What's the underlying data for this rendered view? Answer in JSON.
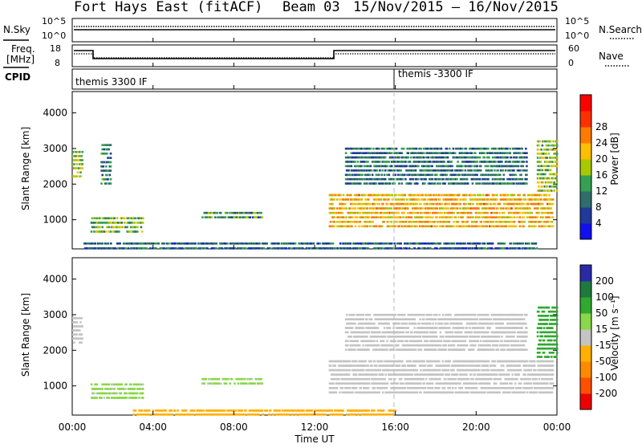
{
  "header": {
    "radar": "Fort Hays East (fitACF)",
    "beam": "Beam 03",
    "dates": "15/Nov/2015 – 16/Nov/2015"
  },
  "panels": {
    "nsky_label": "N.Sky",
    "nsearch_label": "N.Search",
    "nsky_ticks": [
      "10^5",
      "10^0"
    ],
    "nsearch_ticks": [
      "10^5",
      "10^0"
    ],
    "freq_label_1": "Freq.",
    "freq_label_2": "[MHz]",
    "freq_ticks": [
      "18",
      "8"
    ],
    "nave_label": "Nave",
    "nave_ticks": [
      "60",
      "0"
    ],
    "cpid_label": "CPID",
    "cpid_segments": [
      {
        "label": "themis 3300 IF",
        "start_hour": 0
      },
      {
        "label": "themis -3300 IF",
        "start_hour": 16
      }
    ]
  },
  "axes": {
    "xlabel": "Time UT",
    "ylabel": "Slant Range [km]",
    "x_ticks": [
      "00:00",
      "04:00",
      "08:00",
      "12:00",
      "16:00",
      "20:00",
      "00:00"
    ],
    "y_ticks": [
      "1000",
      "2000",
      "3000",
      "4000"
    ]
  },
  "colorbars": {
    "power_title": "Power [dB]",
    "power_ticks": [
      "4",
      "8",
      "12",
      "16",
      "20",
      "24",
      "28"
    ],
    "power_colors": [
      "#1010ee",
      "#1f3a9a",
      "#2f6e6a",
      "#35a050",
      "#a8c800",
      "#ffbe00",
      "#ff7a00",
      "#ff3000",
      "#ff0000"
    ],
    "velocity_title": "Velocity [m s⁻¹]",
    "velocity_ticks": [
      "200",
      "100",
      "50",
      "15",
      "-15",
      "-50",
      "-100",
      "-200"
    ],
    "velocity_colors": [
      "#2a2aa8",
      "#1e7a3c",
      "#2faa2f",
      "#88d848",
      "#c4c4c4",
      "#ffb000",
      "#ff8a00",
      "#ff5000",
      "#ee0000"
    ]
  },
  "chart_data": [
    {
      "type": "heatmap",
      "title": "",
      "xlabel": "Time UT",
      "ylabel": "Slant Range [km]",
      "xlim": [
        0,
        24
      ],
      "ylim": [
        180,
        4600
      ],
      "colorbar": {
        "label": "Power [dB]",
        "range": [
          0,
          32
        ]
      },
      "regions": [
        {
          "t_start": 0.0,
          "t_end": 0.5,
          "range_low": 2200,
          "range_high": 3000,
          "value": 16
        },
        {
          "t_start": 0.9,
          "t_end": 3.5,
          "range_low": 650,
          "range_high": 1150,
          "value": 14
        },
        {
          "t_start": 1.4,
          "t_end": 1.9,
          "range_low": 2000,
          "range_high": 3200,
          "value": 10
        },
        {
          "t_start": 6.4,
          "t_end": 9.4,
          "range_low": 1050,
          "range_high": 1300,
          "value": 11
        },
        {
          "t_start": 12.7,
          "t_end": 23.8,
          "range_low": 800,
          "range_high": 1800,
          "value": 20
        },
        {
          "t_start": 13.5,
          "t_end": 22.5,
          "range_low": 2000,
          "range_high": 3100,
          "value": 9
        },
        {
          "t_start": 23.0,
          "t_end": 24.0,
          "range_low": 1800,
          "range_high": 3300,
          "value": 15
        },
        {
          "t_start": 0.5,
          "t_end": 23.0,
          "range_low": 180,
          "range_high": 450,
          "value": 8
        }
      ]
    },
    {
      "type": "heatmap",
      "title": "",
      "xlabel": "Time UT",
      "ylabel": "Slant Range [km]",
      "xlim": [
        0,
        24
      ],
      "ylim": [
        180,
        4600
      ],
      "colorbar": {
        "label": "Velocity [m s-1]",
        "range": [
          -250,
          250
        ]
      },
      "regions": [
        {
          "t_start": 0.0,
          "t_end": 0.5,
          "range_low": 2200,
          "range_high": 3000,
          "value": 0
        },
        {
          "t_start": 0.9,
          "t_end": 3.5,
          "range_low": 650,
          "range_high": 1150,
          "value": 40
        },
        {
          "t_start": 6.4,
          "t_end": 9.4,
          "range_low": 1050,
          "range_high": 1300,
          "value": 40
        },
        {
          "t_start": 12.7,
          "t_end": 23.8,
          "range_low": 800,
          "range_high": 1800,
          "value": 0
        },
        {
          "t_start": 13.5,
          "t_end": 22.5,
          "range_low": 2000,
          "range_high": 3100,
          "value": 0
        },
        {
          "t_start": 23.0,
          "t_end": 24.0,
          "range_low": 1800,
          "range_high": 3300,
          "value": 120
        },
        {
          "t_start": 3.0,
          "t_end": 16.0,
          "range_low": 180,
          "range_high": 400,
          "value": -60
        }
      ]
    }
  ]
}
